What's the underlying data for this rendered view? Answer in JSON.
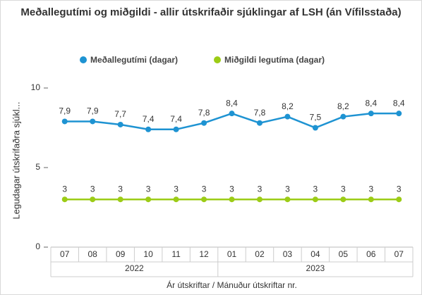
{
  "chart_data": {
    "type": "line",
    "title": "Meðallegutími og miðgildi - allir útskrifaðir sjúklingar af LSH (án Vífilsstaða)",
    "x_label": "Ár útskriftar / Mánuður útskriftar nr.",
    "y_label": "Legudagar útskrifaðra sjúkl...",
    "categories": [
      "07",
      "08",
      "09",
      "10",
      "11",
      "12",
      "01",
      "02",
      "03",
      "04",
      "05",
      "06",
      "07"
    ],
    "category_groups": [
      "2022",
      "2022",
      "2022",
      "2022",
      "2022",
      "2022",
      "2023",
      "2023",
      "2023",
      "2023",
      "2023",
      "2023",
      "2023"
    ],
    "ylim": [
      0,
      10
    ],
    "yticks": [
      0,
      5,
      10
    ],
    "grid": false,
    "legend": "top",
    "series": [
      {
        "name": "Meðallegutími (dagar)",
        "color": "#1e93d2",
        "values": [
          7.9,
          7.9,
          7.7,
          7.4,
          7.4,
          7.8,
          8.4,
          7.8,
          8.2,
          7.5,
          8.2,
          8.4,
          8.4
        ],
        "value_labels": [
          "7,9",
          "7,9",
          "7,7",
          "7,4",
          "7,4",
          "7,8",
          "8,4",
          "7,8",
          "8,2",
          "7,5",
          "8,2",
          "8,4",
          "8,4"
        ]
      },
      {
        "name": "Miðgildi legutíma (dagar)",
        "color": "#9ccc16",
        "values": [
          3,
          3,
          3,
          3,
          3,
          3,
          3,
          3,
          3,
          3,
          3,
          3,
          3
        ]
      }
    ]
  }
}
